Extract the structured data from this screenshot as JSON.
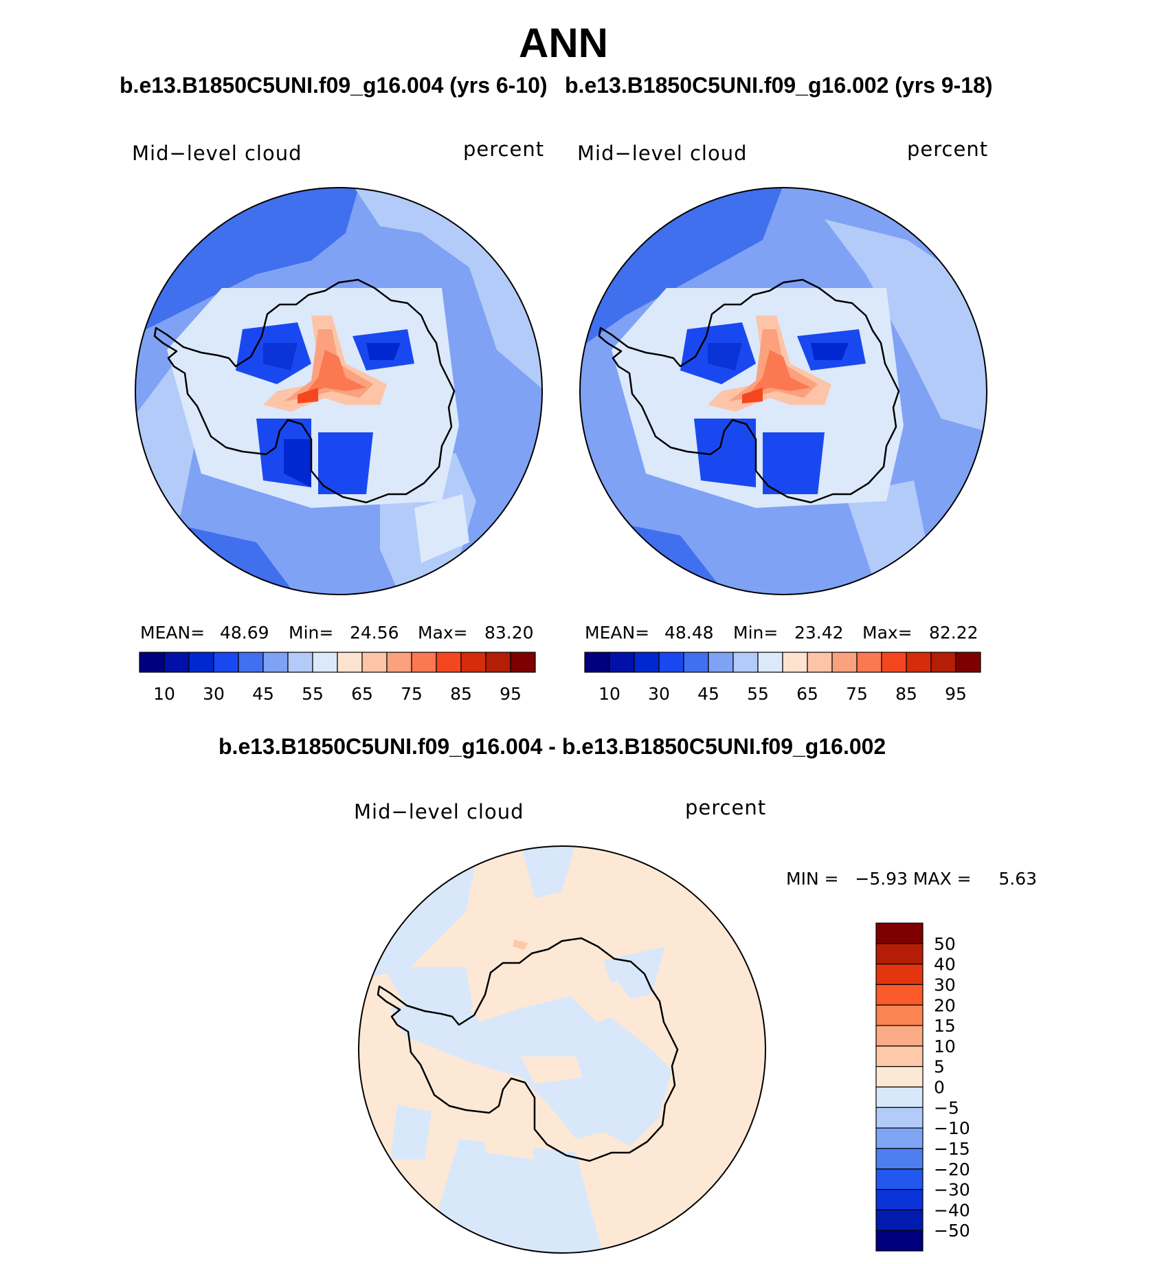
{
  "title": "ANN",
  "top_subtitle_left": "b.e13.B1850C5UNI.f09_g16.004 (yrs 6-10)",
  "top_subtitle_right": "b.e13.B1850C5UNI.f09_g16.002 (yrs 9-18)",
  "diff_title": "b.e13.B1850C5UNI.f09_g16.004 - b.e13.B1850C5UNI.f09_g16.002",
  "panels": [
    {
      "variable": "Mid−level cloud",
      "units": "percent",
      "mean_label": "MEAN=",
      "mean_value": "48.69",
      "min_label": "Min=",
      "min_value": "24.56",
      "max_label": "Max=",
      "max_value": "83.20"
    },
    {
      "variable": "Mid−level cloud",
      "units": "percent",
      "mean_label": "MEAN=",
      "mean_value": "48.48",
      "min_label": "Min=",
      "min_value": "23.42",
      "max_label": "Max=",
      "max_value": "82.22"
    }
  ],
  "diff_panel": {
    "variable": "Mid−level cloud",
    "units": "percent",
    "minmax_text": "MIN =   −5.93 MAX =     5.63"
  },
  "colorbar_top": {
    "colors": [
      "#00007f",
      "#0010a8",
      "#0028d0",
      "#1a48f0",
      "#4170ee",
      "#7fa2f5",
      "#b3cbf9",
      "#dbe9fb",
      "#fde3d0",
      "#fdc4a8",
      "#fba17e",
      "#fb7850",
      "#f5471f",
      "#d52c0a",
      "#b41e06",
      "#7f0000"
    ],
    "labels": [
      "10",
      "30",
      "45",
      "55",
      "65",
      "75",
      "85",
      "95"
    ]
  },
  "colorbar_diff": {
    "colors": [
      "#7f0000",
      "#b41e06",
      "#e3350e",
      "#fb5a2a",
      "#fb8450",
      "#fbab86",
      "#fdc9a8",
      "#fde8d6",
      "#d8e8fa",
      "#b2cbf8",
      "#7ea4f4",
      "#4e7ff0",
      "#2258ee",
      "#0a34d8",
      "#001cae",
      "#00007f"
    ],
    "labels": [
      "50",
      "40",
      "30",
      "20",
      "15",
      "10",
      "5",
      "0",
      "−5",
      "−10",
      "−15",
      "−20",
      "−30",
      "−40",
      "−50"
    ]
  }
}
